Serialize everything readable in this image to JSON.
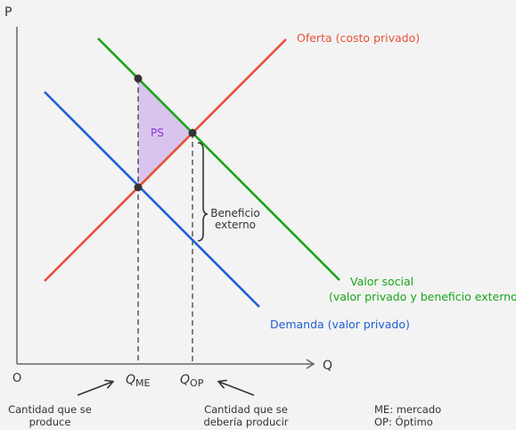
{
  "axes": {
    "y_label": "P",
    "x_label": "Q",
    "origin_label": "O"
  },
  "curves": {
    "supply": {
      "label": "Oferta (costo privado)",
      "color": "#e8513a"
    },
    "social_value": {
      "label_line1": "Valor social",
      "label_line2": "(valor privado y beneficio externo)",
      "color": "#1aa51a"
    },
    "demand": {
      "label": "Demanda (valor privado)",
      "color": "#1f5fd6"
    }
  },
  "area": {
    "label": "PS",
    "fill": "#d9c4ee",
    "label_color": "#8a35d0"
  },
  "bracket": {
    "label_line1": "Beneficio",
    "label_line2": "externo"
  },
  "quantities": {
    "market": {
      "symbol": "Q",
      "subscript": "ME"
    },
    "optimum": {
      "symbol": "Q",
      "subscript": "OP"
    }
  },
  "notes": {
    "produced_line1": "Cantidad que se",
    "produced_line2": "produce",
    "should_line1": "Cantidad que se",
    "should_line2": "debería producir",
    "legend_line1": "ME: mercado",
    "legend_line2": "OP: Óptimo"
  }
}
